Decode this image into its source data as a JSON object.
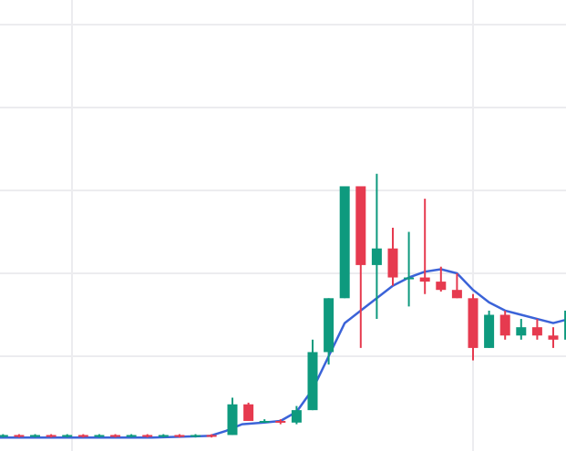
{
  "chart_data": {
    "type": "candlestick",
    "title": "",
    "xlabel": "",
    "ylabel": "",
    "grid": true,
    "legend": "none",
    "x_gridlines": [
      5,
      30
    ],
    "ylim": [
      0,
      5.4
    ],
    "y_gridlines": [
      1,
      2,
      3,
      4,
      5
    ],
    "up_color": "#0e9a7e",
    "down_color": "#e63a4f",
    "ma_color": "#3b63d8",
    "candles": [
      {
        "x": 0.7,
        "open": 0.04,
        "high": 0.06,
        "low": 0.02,
        "close": 0.05
      },
      {
        "x": 1.7,
        "open": 0.05,
        "high": 0.06,
        "low": 0.02,
        "close": 0.03
      },
      {
        "x": 2.7,
        "open": 0.03,
        "high": 0.06,
        "low": 0.02,
        "close": 0.05
      },
      {
        "x": 3.7,
        "open": 0.05,
        "high": 0.06,
        "low": 0.02,
        "close": 0.03
      },
      {
        "x": 4.7,
        "open": 0.03,
        "high": 0.06,
        "low": 0.02,
        "close": 0.05
      },
      {
        "x": 5.7,
        "open": 0.05,
        "high": 0.06,
        "low": 0.02,
        "close": 0.03
      },
      {
        "x": 6.7,
        "open": 0.03,
        "high": 0.06,
        "low": 0.02,
        "close": 0.05
      },
      {
        "x": 7.7,
        "open": 0.05,
        "high": 0.06,
        "low": 0.02,
        "close": 0.03
      },
      {
        "x": 8.7,
        "open": 0.03,
        "high": 0.06,
        "low": 0.02,
        "close": 0.05
      },
      {
        "x": 9.7,
        "open": 0.05,
        "high": 0.06,
        "low": 0.02,
        "close": 0.03
      },
      {
        "x": 10.7,
        "open": 0.03,
        "high": 0.06,
        "low": 0.02,
        "close": 0.05
      },
      {
        "x": 11.7,
        "open": 0.05,
        "high": 0.06,
        "low": 0.02,
        "close": 0.03
      },
      {
        "x": 12.7,
        "open": 0.03,
        "high": 0.06,
        "low": 0.02,
        "close": 0.05
      },
      {
        "x": 13.7,
        "open": 0.05,
        "high": 0.06,
        "low": 0.02,
        "close": 0.03
      },
      {
        "x": 15.0,
        "open": 0.05,
        "high": 0.5,
        "low": 0.05,
        "close": 0.42
      },
      {
        "x": 16.0,
        "open": 0.42,
        "high": 0.44,
        "low": 0.22,
        "close": 0.22
      },
      {
        "x": 17.0,
        "open": 0.22,
        "high": 0.24,
        "low": 0.2,
        "close": 0.22
      },
      {
        "x": 18.0,
        "open": 0.22,
        "high": 0.24,
        "low": 0.18,
        "close": 0.2
      },
      {
        "x": 19.0,
        "open": 0.2,
        "high": 0.4,
        "low": 0.18,
        "close": 0.35
      },
      {
        "x": 20.0,
        "open": 0.35,
        "high": 1.2,
        "low": 0.35,
        "close": 1.05
      },
      {
        "x": 21.0,
        "open": 1.05,
        "high": 1.7,
        "low": 0.9,
        "close": 1.7
      },
      {
        "x": 22.0,
        "open": 1.7,
        "high": 3.05,
        "low": 1.7,
        "close": 3.05
      },
      {
        "x": 23.0,
        "open": 3.05,
        "high": 3.05,
        "low": 1.1,
        "close": 2.1
      },
      {
        "x": 24.0,
        "open": 2.1,
        "high": 3.2,
        "low": 1.45,
        "close": 2.3
      },
      {
        "x": 25.0,
        "open": 2.3,
        "high": 2.55,
        "low": 1.85,
        "close": 1.95
      },
      {
        "x": 26.0,
        "open": 1.95,
        "high": 2.5,
        "low": 1.6,
        "close": 1.95
      },
      {
        "x": 27.0,
        "open": 1.95,
        "high": 2.9,
        "low": 1.75,
        "close": 1.9
      },
      {
        "x": 28.0,
        "open": 1.9,
        "high": 2.08,
        "low": 1.78,
        "close": 1.8
      },
      {
        "x": 29.0,
        "open": 1.8,
        "high": 2.0,
        "low": 1.7,
        "close": 1.7
      },
      {
        "x": 30.0,
        "open": 1.7,
        "high": 1.75,
        "low": 0.95,
        "close": 1.1
      },
      {
        "x": 31.0,
        "open": 1.1,
        "high": 1.55,
        "low": 1.1,
        "close": 1.5
      },
      {
        "x": 32.0,
        "open": 1.5,
        "high": 1.55,
        "low": 1.2,
        "close": 1.25
      },
      {
        "x": 33.0,
        "open": 1.25,
        "high": 1.45,
        "low": 1.2,
        "close": 1.35
      },
      {
        "x": 34.0,
        "open": 1.35,
        "high": 1.45,
        "low": 1.2,
        "close": 1.25
      },
      {
        "x": 35.0,
        "open": 1.25,
        "high": 1.35,
        "low": 1.1,
        "close": 1.2
      },
      {
        "x": 36.0,
        "open": 1.2,
        "high": 1.6,
        "low": 1.2,
        "close": 1.55
      }
    ],
    "moving_average": {
      "x": [
        0,
        5,
        10,
        13.6,
        14.6,
        15.6,
        17,
        18,
        19,
        20,
        21,
        22,
        23,
        24,
        25,
        26,
        27,
        28,
        29,
        30,
        31,
        32,
        33,
        34,
        35,
        36
      ],
      "y": [
        0.02,
        0.02,
        0.02,
        0.04,
        0.1,
        0.18,
        0.2,
        0.22,
        0.33,
        0.6,
        1.0,
        1.4,
        1.55,
        1.7,
        1.85,
        1.95,
        2.02,
        2.05,
        2.0,
        1.8,
        1.65,
        1.55,
        1.5,
        1.45,
        1.4,
        1.45
      ]
    }
  }
}
